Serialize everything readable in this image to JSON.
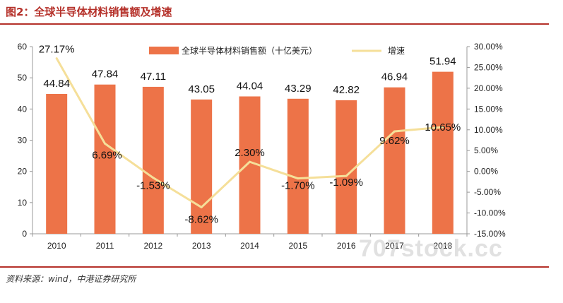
{
  "figure": {
    "title": "图2：全球半导体材料销售额及增速",
    "source": "资料来源：wind，中港证券研究所",
    "watermark": "707stock.cc"
  },
  "colors": {
    "bar": "#ed7348",
    "line": "#f5df99",
    "accent": "#b5312a"
  },
  "chart_data": {
    "type": "bar",
    "categories": [
      "2010",
      "2011",
      "2012",
      "2013",
      "2014",
      "2015",
      "2016",
      "2017",
      "2018"
    ],
    "series": [
      {
        "name": "全球半导体材料销售额（十亿美元）",
        "type": "bar",
        "axis": "left",
        "values": [
          44.84,
          47.84,
          47.11,
          43.05,
          44.04,
          43.29,
          42.82,
          46.94,
          51.94
        ],
        "labels": [
          "44.84",
          "47.84",
          "47.11",
          "43.05",
          "44.04",
          "43.29",
          "42.82",
          "46.94",
          "51.94"
        ]
      },
      {
        "name": "增速",
        "type": "line",
        "axis": "right",
        "values": [
          27.17,
          6.69,
          -1.53,
          -8.62,
          2.3,
          -1.7,
          -1.09,
          9.62,
          10.65
        ],
        "labels": [
          "27.17%",
          "6.69%",
          "-1.53%",
          "-8.62%",
          "2.30%",
          "-1.70%",
          "-1.09%",
          "9.62%",
          "10.65%"
        ]
      }
    ],
    "y_left": {
      "lim": [
        0,
        60
      ],
      "ticks": [
        0,
        10,
        20,
        30,
        40,
        50,
        60
      ],
      "tick_labels": [
        "0",
        "10",
        "20",
        "30",
        "40",
        "50",
        "60"
      ]
    },
    "y_right": {
      "lim": [
        -15,
        30
      ],
      "ticks": [
        -15,
        -10,
        -5,
        0,
        5,
        10,
        15,
        20,
        25,
        30
      ],
      "tick_labels": [
        "-15.00%",
        "-10.00%",
        "-5.00%",
        "0.00%",
        "5.00%",
        "10.00%",
        "15.00%",
        "20.00%",
        "25.00%",
        "30.00%"
      ]
    },
    "grid": false,
    "legend_position": "top-center"
  }
}
